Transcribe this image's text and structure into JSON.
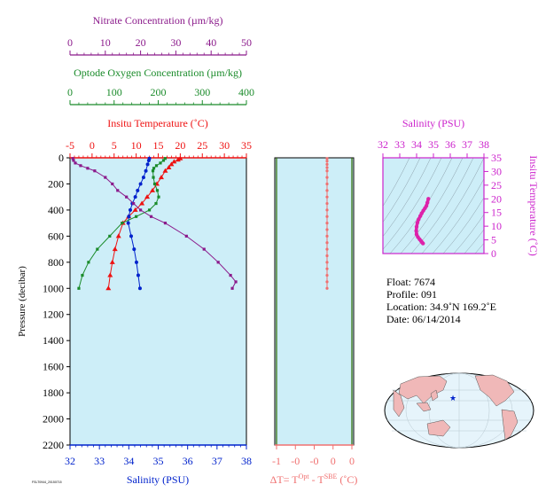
{
  "colors": {
    "nitrate": "#8b1a8b",
    "oxygen": "#1a8b2a",
    "temperature": "#ee1111",
    "salinity": "#0022cc",
    "delta_t": "#f07070",
    "ts": "#dd22aa",
    "panel_bg": "#cdeef8",
    "ts_axis": "#cc22cc"
  },
  "chart_data": [
    {
      "type": "line",
      "name": "profile",
      "y_axis": {
        "label": "Pressure (decibar)",
        "range": [
          0,
          2200
        ],
        "ticks": [
          "0",
          "200",
          "400",
          "600",
          "800",
          "1000",
          "1200",
          "1400",
          "1600",
          "1800",
          "2000",
          "2200"
        ]
      },
      "axes": {
        "nitrate": {
          "label": "Nitrate Concentration (µm/kg)",
          "range": [
            0,
            50
          ],
          "ticks": [
            "0",
            "10",
            "20",
            "30",
            "40",
            "50"
          ]
        },
        "oxygen": {
          "label": "Optode Oxygen Concentration (µm/kg)",
          "range": [
            0,
            400
          ],
          "ticks": [
            "0",
            "100",
            "200",
            "300",
            "400"
          ]
        },
        "temperature": {
          "label": "Insitu Temperature (˚C)",
          "range": [
            -5,
            35
          ],
          "ticks": [
            "-5",
            "0",
            "5",
            "10",
            "15",
            "20",
            "25",
            "30",
            "35"
          ]
        },
        "salinity": {
          "label": "Salinity (PSU)",
          "range": [
            32,
            38
          ],
          "ticks": [
            "32",
            "33",
            "34",
            "35",
            "36",
            "37",
            "38"
          ]
        }
      },
      "series": [
        {
          "key": "temperature",
          "points": [
            [
              20,
              5
            ],
            [
              19.5,
              15
            ],
            [
              18.6,
              30
            ],
            [
              18,
              50
            ],
            [
              17.4,
              75
            ],
            [
              16.6,
              100
            ],
            [
              15.7,
              150
            ],
            [
              14.7,
              200
            ],
            [
              13.7,
              250
            ],
            [
              12.5,
              300
            ],
            [
              11.3,
              350
            ],
            [
              9.8,
              400
            ],
            [
              8.3,
              450
            ],
            [
              7.0,
              500
            ],
            [
              6.0,
              600
            ],
            [
              5.2,
              700
            ],
            [
              4.6,
              800
            ],
            [
              4.1,
              900
            ],
            [
              3.7,
              1000
            ]
          ]
        },
        {
          "key": "salinity",
          "points": [
            [
              34.7,
              5
            ],
            [
              34.68,
              20
            ],
            [
              34.64,
              50
            ],
            [
              34.58,
              100
            ],
            [
              34.5,
              150
            ],
            [
              34.4,
              200
            ],
            [
              34.3,
              250
            ],
            [
              34.22,
              300
            ],
            [
              34.12,
              350
            ],
            [
              34.05,
              400
            ],
            [
              34.0,
              450
            ],
            [
              33.98,
              500
            ],
            [
              34.08,
              600
            ],
            [
              34.18,
              700
            ],
            [
              34.26,
              800
            ],
            [
              34.32,
              900
            ],
            [
              34.38,
              1000
            ]
          ]
        },
        {
          "key": "oxygen",
          "points": [
            [
              216,
              5
            ],
            [
              212,
              20
            ],
            [
              205,
              40
            ],
            [
              196,
              60
            ],
            [
              190,
              80
            ],
            [
              188,
              100
            ],
            [
              189,
              150
            ],
            [
              192,
              200
            ],
            [
              198,
              250
            ],
            [
              201,
              300
            ],
            [
              195,
              350
            ],
            [
              180,
              400
            ],
            [
              150,
              450
            ],
            [
              118,
              500
            ],
            [
              90,
              600
            ],
            [
              62,
              700
            ],
            [
              42,
              800
            ],
            [
              28,
              900
            ],
            [
              20,
              1000
            ]
          ]
        },
        {
          "key": "nitrate",
          "points": [
            [
              0.8,
              5
            ],
            [
              1,
              20
            ],
            [
              1.5,
              40
            ],
            [
              3,
              60
            ],
            [
              5,
              80
            ],
            [
              7,
              100
            ],
            [
              10,
              150
            ],
            [
              12,
              200
            ],
            [
              13.5,
              250
            ],
            [
              16,
              300
            ],
            [
              18,
              350
            ],
            [
              20,
              400
            ],
            [
              23,
              450
            ],
            [
              27,
              500
            ],
            [
              33,
              600
            ],
            [
              38,
              700
            ],
            [
              42,
              800
            ],
            [
              45.5,
              900
            ],
            [
              47,
              950
            ],
            [
              46,
              1000
            ]
          ]
        }
      ]
    },
    {
      "type": "line",
      "name": "delta_t",
      "xlabel": "ΔT= T",
      "xlabel_sup1": "Opt",
      "xlabel_mid": " - T",
      "xlabel_sup2": "SBE",
      "xlabel_unit": " (˚C)",
      "x_ticks": [
        "-1",
        "-0",
        "-0",
        "0",
        "0"
      ],
      "series": [
        {
          "name": "delta_t",
          "points": [
            [
              0,
              5
            ],
            [
              0,
              25
            ],
            [
              0,
              50
            ],
            [
              0,
              75
            ],
            [
              0,
              100
            ],
            [
              0,
              150
            ],
            [
              0,
              200
            ],
            [
              0,
              250
            ],
            [
              0,
              300
            ],
            [
              0,
              350
            ],
            [
              0,
              400
            ],
            [
              0,
              450
            ],
            [
              0,
              500
            ],
            [
              0,
              550
            ],
            [
              0,
              600
            ],
            [
              0,
              650
            ],
            [
              0,
              700
            ],
            [
              0,
              750
            ],
            [
              0,
              800
            ],
            [
              0,
              850
            ],
            [
              0,
              900
            ],
            [
              0,
              950
            ],
            [
              0,
              1000
            ]
          ]
        }
      ]
    },
    {
      "type": "scatter",
      "name": "ts_diagram",
      "x_axis": {
        "label": "Salinity (PSU)",
        "range": [
          32,
          38
        ],
        "ticks": [
          "32",
          "33",
          "34",
          "35",
          "36",
          "37",
          "38"
        ]
      },
      "y_axis": {
        "label": "Insitu Temperature (˚C)",
        "range": [
          0,
          35
        ],
        "ticks": [
          "0",
          "5",
          "10",
          "15",
          "20",
          "25",
          "30",
          "35"
        ]
      },
      "series": [
        {
          "name": "ts",
          "points": [
            [
              34.7,
              20
            ],
            [
              34.64,
              18.6
            ],
            [
              34.58,
              17.4
            ],
            [
              34.5,
              16.6
            ],
            [
              34.4,
              15.7
            ],
            [
              34.3,
              14.7
            ],
            [
              34.22,
              13.7
            ],
            [
              34.12,
              12.5
            ],
            [
              34.05,
              11.3
            ],
            [
              34.0,
              9.8
            ],
            [
              33.98,
              8.3
            ],
            [
              34.0,
              7.0
            ],
            [
              34.08,
              6.0
            ],
            [
              34.18,
              5.2
            ],
            [
              34.26,
              4.6
            ],
            [
              34.32,
              4.1
            ],
            [
              34.38,
              3.7
            ]
          ]
        }
      ]
    }
  ],
  "info": {
    "float": "Float:  7674",
    "profile": "Profile:  091",
    "location": "Location:  34.9˚N  169.2˚E",
    "date": "Date:  06/14/2014"
  },
  "footer_tiny": "FSLT0944_20150715"
}
